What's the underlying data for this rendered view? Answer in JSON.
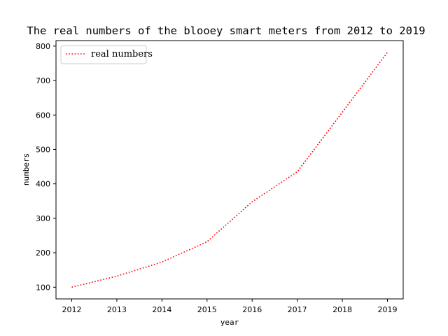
{
  "chart_data": {
    "type": "line",
    "title": "The real numbers of the blooey smart meters from 2012 to 2019",
    "xlabel": "year",
    "ylabel": "numbers",
    "x": [
      2012,
      2013,
      2014,
      2015,
      2016,
      2017,
      2018,
      2019
    ],
    "xticks": [
      "2012",
      "2013",
      "2014",
      "2015",
      "2016",
      "2017",
      "2018",
      "2019"
    ],
    "yticks": [
      "100",
      "200",
      "300",
      "400",
      "500",
      "600",
      "700",
      "800"
    ],
    "ylim": [
      66,
      816
    ],
    "grid": false,
    "legend_position": "top-left",
    "series": [
      {
        "name": "real numbers",
        "values": [
          100,
          132,
          173,
          232,
          348,
          435,
          608,
          782
        ],
        "color": "#ff0000",
        "line_style": "dotted"
      }
    ]
  }
}
